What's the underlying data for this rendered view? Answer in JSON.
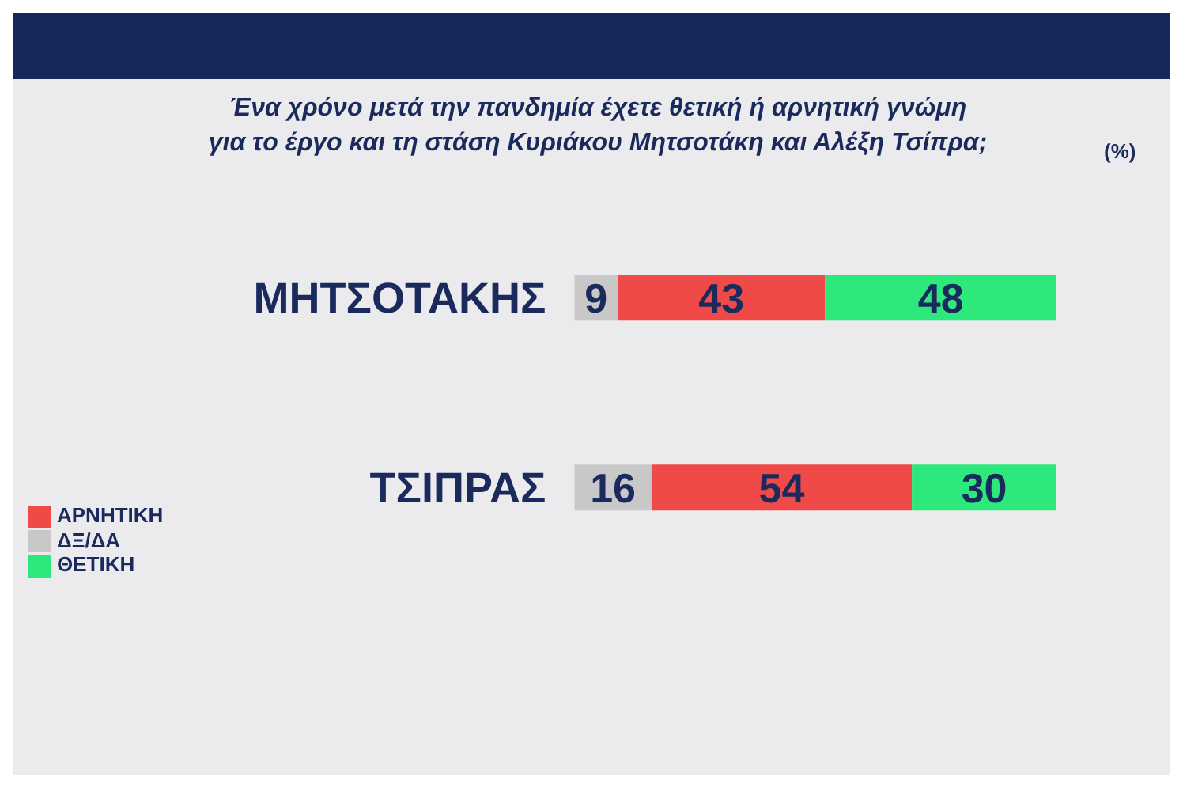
{
  "chart_data": {
    "type": "bar",
    "orientation": "horizontal",
    "stacked": true,
    "title": "Ένα χρόνο μετά την πανδημία έχετε θετική ή αρνητική γνώμη\nγια το έργο και τη στάση Κυριάκου Μητσοτάκη και Αλέξη Τσίπρα;",
    "annotations": [
      "(%)"
    ],
    "categories": [
      "ΜΗΤΣΟΤΑΚΗΣ",
      "ΤΣΙΠΡΑΣ"
    ],
    "series": [
      {
        "name": "ΔΞ/ΔΑ",
        "color": "#c8c8c8",
        "values": [
          9,
          16
        ]
      },
      {
        "name": "ΑΡΝΗΤΙΚΗ",
        "color": "#f04a48",
        "values": [
          43,
          54
        ]
      },
      {
        "name": "ΘΕΤΙΚΗ",
        "color": "#2de87a",
        "values": [
          48,
          30
        ]
      }
    ],
    "xlim": [
      0,
      100
    ],
    "tick_labels": "y",
    "data_labels": true,
    "legend": "left",
    "grid": false
  }
}
